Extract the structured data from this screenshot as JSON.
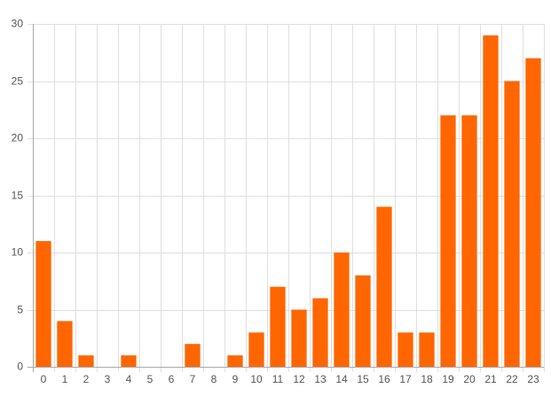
{
  "chart_data": {
    "type": "bar",
    "categories": [
      "0",
      "1",
      "2",
      "3",
      "4",
      "5",
      "6",
      "7",
      "8",
      "9",
      "10",
      "11",
      "12",
      "13",
      "14",
      "15",
      "16",
      "17",
      "18",
      "19",
      "20",
      "21",
      "22",
      "23"
    ],
    "values": [
      11,
      4,
      1,
      0,
      1,
      0,
      0,
      2,
      0,
      1,
      3,
      7,
      5,
      6,
      10,
      8,
      14,
      3,
      3,
      22,
      22,
      29,
      25,
      27
    ],
    "color": "#ff6600",
    "ylim": [
      0,
      30
    ],
    "yticks": [
      0,
      5,
      10,
      15,
      20,
      25,
      30
    ],
    "grid": true
  }
}
